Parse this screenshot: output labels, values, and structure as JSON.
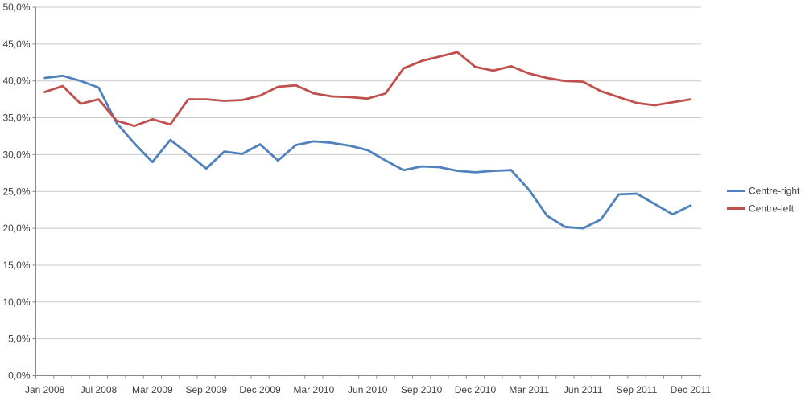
{
  "chart_data": {
    "type": "line",
    "title": "",
    "grid": true,
    "n_points": 37,
    "x_labels": [
      "Jan 2008",
      "Jul 2008",
      "Mar 2009",
      "Sep 2009",
      "Dec 2009",
      "Mar 2010",
      "Jun 2010",
      "Sep 2010",
      "Dec 2010",
      "Mar 2011",
      "Jun 2011",
      "Sep 2011",
      "Dec 2011"
    ],
    "x_label_indices": [
      0,
      3,
      6,
      9,
      12,
      15,
      18,
      21,
      24,
      27,
      30,
      33,
      36
    ],
    "y_axis": {
      "min": 0,
      "max": 50,
      "step": 5,
      "labels": [
        "0,0%",
        "5,0%",
        "10,0%",
        "15,0%",
        "20,0%",
        "25,0%",
        "30,0%",
        "35,0%",
        "40,0%",
        "45,0%",
        "50,0%"
      ]
    },
    "series": [
      {
        "name": "Centre-right",
        "color": "#4F81BD",
        "values": [
          40.4,
          40.7,
          40.0,
          39.1,
          34.3,
          31.5,
          29.0,
          32.0,
          30.1,
          28.1,
          30.4,
          30.1,
          31.4,
          29.2,
          31.3,
          31.8,
          31.6,
          31.2,
          30.6,
          29.2,
          27.9,
          28.4,
          28.3,
          27.8,
          27.6,
          27.8,
          27.9,
          25.2,
          21.7,
          20.2,
          20.0,
          21.2,
          24.6,
          24.7,
          23.3,
          21.9,
          23.1
        ]
      },
      {
        "name": "Centre-left",
        "color": "#C0504D",
        "values": [
          38.5,
          39.3,
          36.9,
          37.5,
          34.6,
          33.9,
          34.8,
          34.1,
          37.5,
          37.5,
          37.3,
          37.4,
          38.0,
          39.2,
          39.4,
          38.3,
          37.9,
          37.8,
          37.6,
          38.3,
          41.7,
          42.7,
          43.3,
          43.9,
          41.9,
          41.4,
          42.0,
          41.0,
          40.4,
          40.0,
          39.9,
          38.6,
          37.8,
          37.0,
          36.7,
          37.1,
          37.5
        ]
      }
    ],
    "legend": {
      "position": "right",
      "entries": [
        "Centre-right",
        "Centre-left"
      ]
    },
    "style": {
      "grid_color": "#c9c9c9",
      "axis_color": "#898989",
      "label_color": "#3f3f3f",
      "background": "#ffffff",
      "line_width": 2.8
    }
  }
}
